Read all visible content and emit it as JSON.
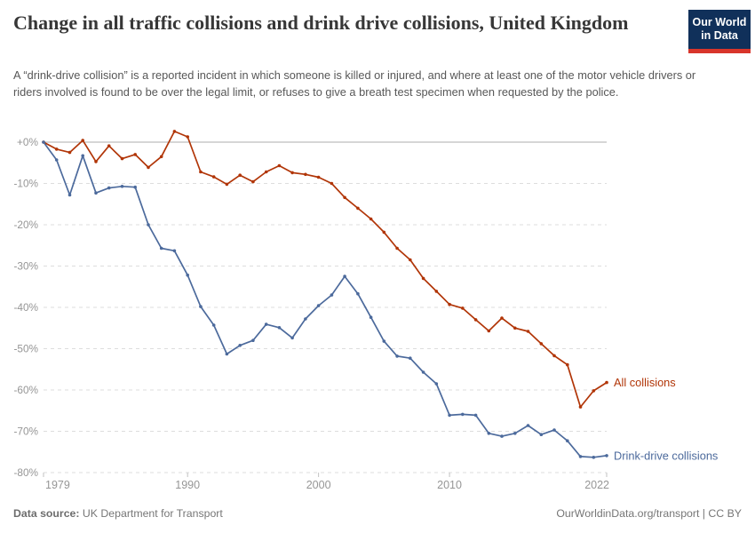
{
  "header": {
    "title": "Change in all traffic collisions and drink drive collisions, United Kingdom",
    "subtitle": "A “drink-drive collision” is a reported incident in which someone is killed or injured, and where at least one of the motor vehicle drivers or riders involved is found to be over the legal limit, or refuses to give a breath test specimen when requested by the police.",
    "logo": {
      "line1": "Our World",
      "line2": "in Data",
      "bg_color": "#10305A",
      "accent_color": "#D8352B"
    }
  },
  "chart_data": {
    "type": "line",
    "title": "Change in all traffic collisions and drink drive collisions, United Kingdom",
    "xlabel": "",
    "ylabel": "",
    "y_unit": "%",
    "ylim": [
      -80,
      5
    ],
    "grid": "horizontal-dashed",
    "legend_position": "end-of-line-labels",
    "x_ticks": [
      1979,
      1990,
      2000,
      2010,
      2022
    ],
    "y_tick_values": [
      0,
      -10,
      -20,
      -30,
      -40,
      -50,
      -60,
      -70,
      -80
    ],
    "y_tick_labels": [
      "+0%",
      "-10%",
      "-20%",
      "-30%",
      "-40%",
      "-50%",
      "-60%",
      "-70%",
      "-80%"
    ],
    "x": [
      1979,
      1980,
      1981,
      1982,
      1983,
      1984,
      1985,
      1986,
      1987,
      1988,
      1989,
      1990,
      1991,
      1992,
      1993,
      1994,
      1995,
      1996,
      1997,
      1998,
      1999,
      2000,
      2001,
      2002,
      2003,
      2004,
      2005,
      2006,
      2007,
      2008,
      2009,
      2010,
      2011,
      2012,
      2013,
      2014,
      2015,
      2016,
      2017,
      2018,
      2019,
      2020,
      2021,
      2022
    ],
    "series": [
      {
        "name": "All collisions",
        "color": "#B13507",
        "values": [
          0,
          -1.7,
          -2.5,
          0.4,
          -4.7,
          -0.9,
          -4.0,
          -3.0,
          -6.1,
          -3.5,
          2.6,
          1.3,
          -7.2,
          -8.4,
          -10.2,
          -8.0,
          -9.6,
          -7.2,
          -5.7,
          -7.4,
          -7.8,
          -8.5,
          -10.0,
          -13.4,
          -16.0,
          -18.6,
          -21.8,
          -25.7,
          -28.5,
          -33.0,
          -36.1,
          -39.3,
          -40.2,
          -43.0,
          -45.7,
          -42.6,
          -45.0,
          -45.8,
          -48.8,
          -51.7,
          -53.9,
          -64.1,
          -60.2,
          -58.2
        ]
      },
      {
        "name": "Drink-drive collisions",
        "color": "#4C6A9C",
        "values": [
          0,
          -4.3,
          -12.8,
          -3.3,
          -12.3,
          -11.1,
          -10.7,
          -10.9,
          -20.0,
          -25.7,
          -26.3,
          -32.2,
          -39.8,
          -44.3,
          -51.3,
          -49.2,
          -48.0,
          -44.1,
          -44.9,
          -47.4,
          -42.8,
          -39.6,
          -37.0,
          -32.5,
          -36.7,
          -42.4,
          -48.2,
          -51.8,
          -52.3,
          -55.7,
          -58.5,
          -66.1,
          -65.9,
          -66.1,
          -70.5,
          -71.2,
          -70.5,
          -68.6,
          -70.8,
          -69.7,
          -72.3,
          -76.1,
          -76.3,
          -75.9
        ]
      }
    ]
  },
  "footer": {
    "source_label": "Data source:",
    "source_value": "UK Department for Transport",
    "credit": "OurWorldinData.org/transport | CC BY"
  }
}
